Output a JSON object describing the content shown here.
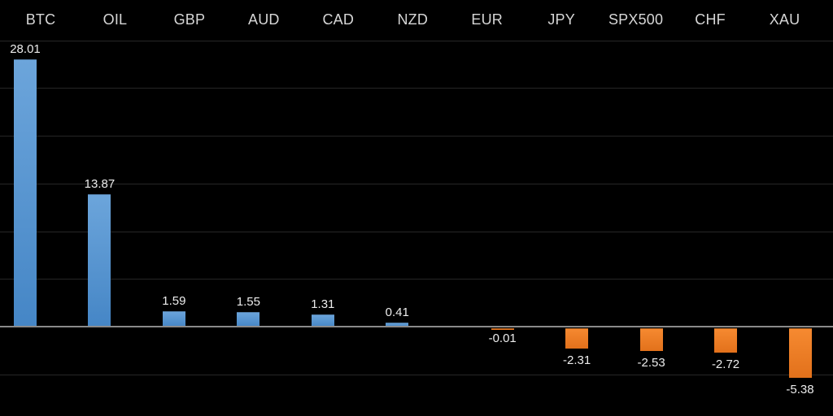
{
  "chart_data": {
    "type": "bar",
    "title": "",
    "xlabel": "",
    "ylabel": "",
    "categories": [
      "BTC",
      "OIL",
      "GBP",
      "AUD",
      "CAD",
      "NZD",
      "EUR",
      "JPY",
      "SPX500",
      "CHF",
      "XAU"
    ],
    "values": [
      28.01,
      13.87,
      1.59,
      1.55,
      1.31,
      0.41,
      -0.01,
      -2.31,
      -2.53,
      -2.72,
      -5.38
    ],
    "value_labels": [
      "28.01",
      "13.87",
      "1.59",
      "1.55",
      "1.31",
      "0.41",
      "-0.01",
      "-2.31",
      "-2.53",
      "-2.72",
      "-5.38"
    ],
    "ylim": [
      -7,
      31
    ],
    "gridlines": [
      30,
      25,
      20,
      15,
      10,
      5,
      0,
      -5
    ],
    "grid_on": true,
    "legend_position": "none",
    "category_label_position": "top",
    "value_label_position": "outside-end",
    "colors": {
      "background": "#000000",
      "positive_bar_top": "#6CA5DB",
      "positive_bar_bottom": "#4586C6",
      "negative_bar_top": "#F68A31",
      "negative_bar_bottom": "#E2711B",
      "gridline": "#262626",
      "zero_axis": "#8A8A8A",
      "category_label": "#D6D6D6",
      "value_label": "#ECECEC"
    }
  }
}
